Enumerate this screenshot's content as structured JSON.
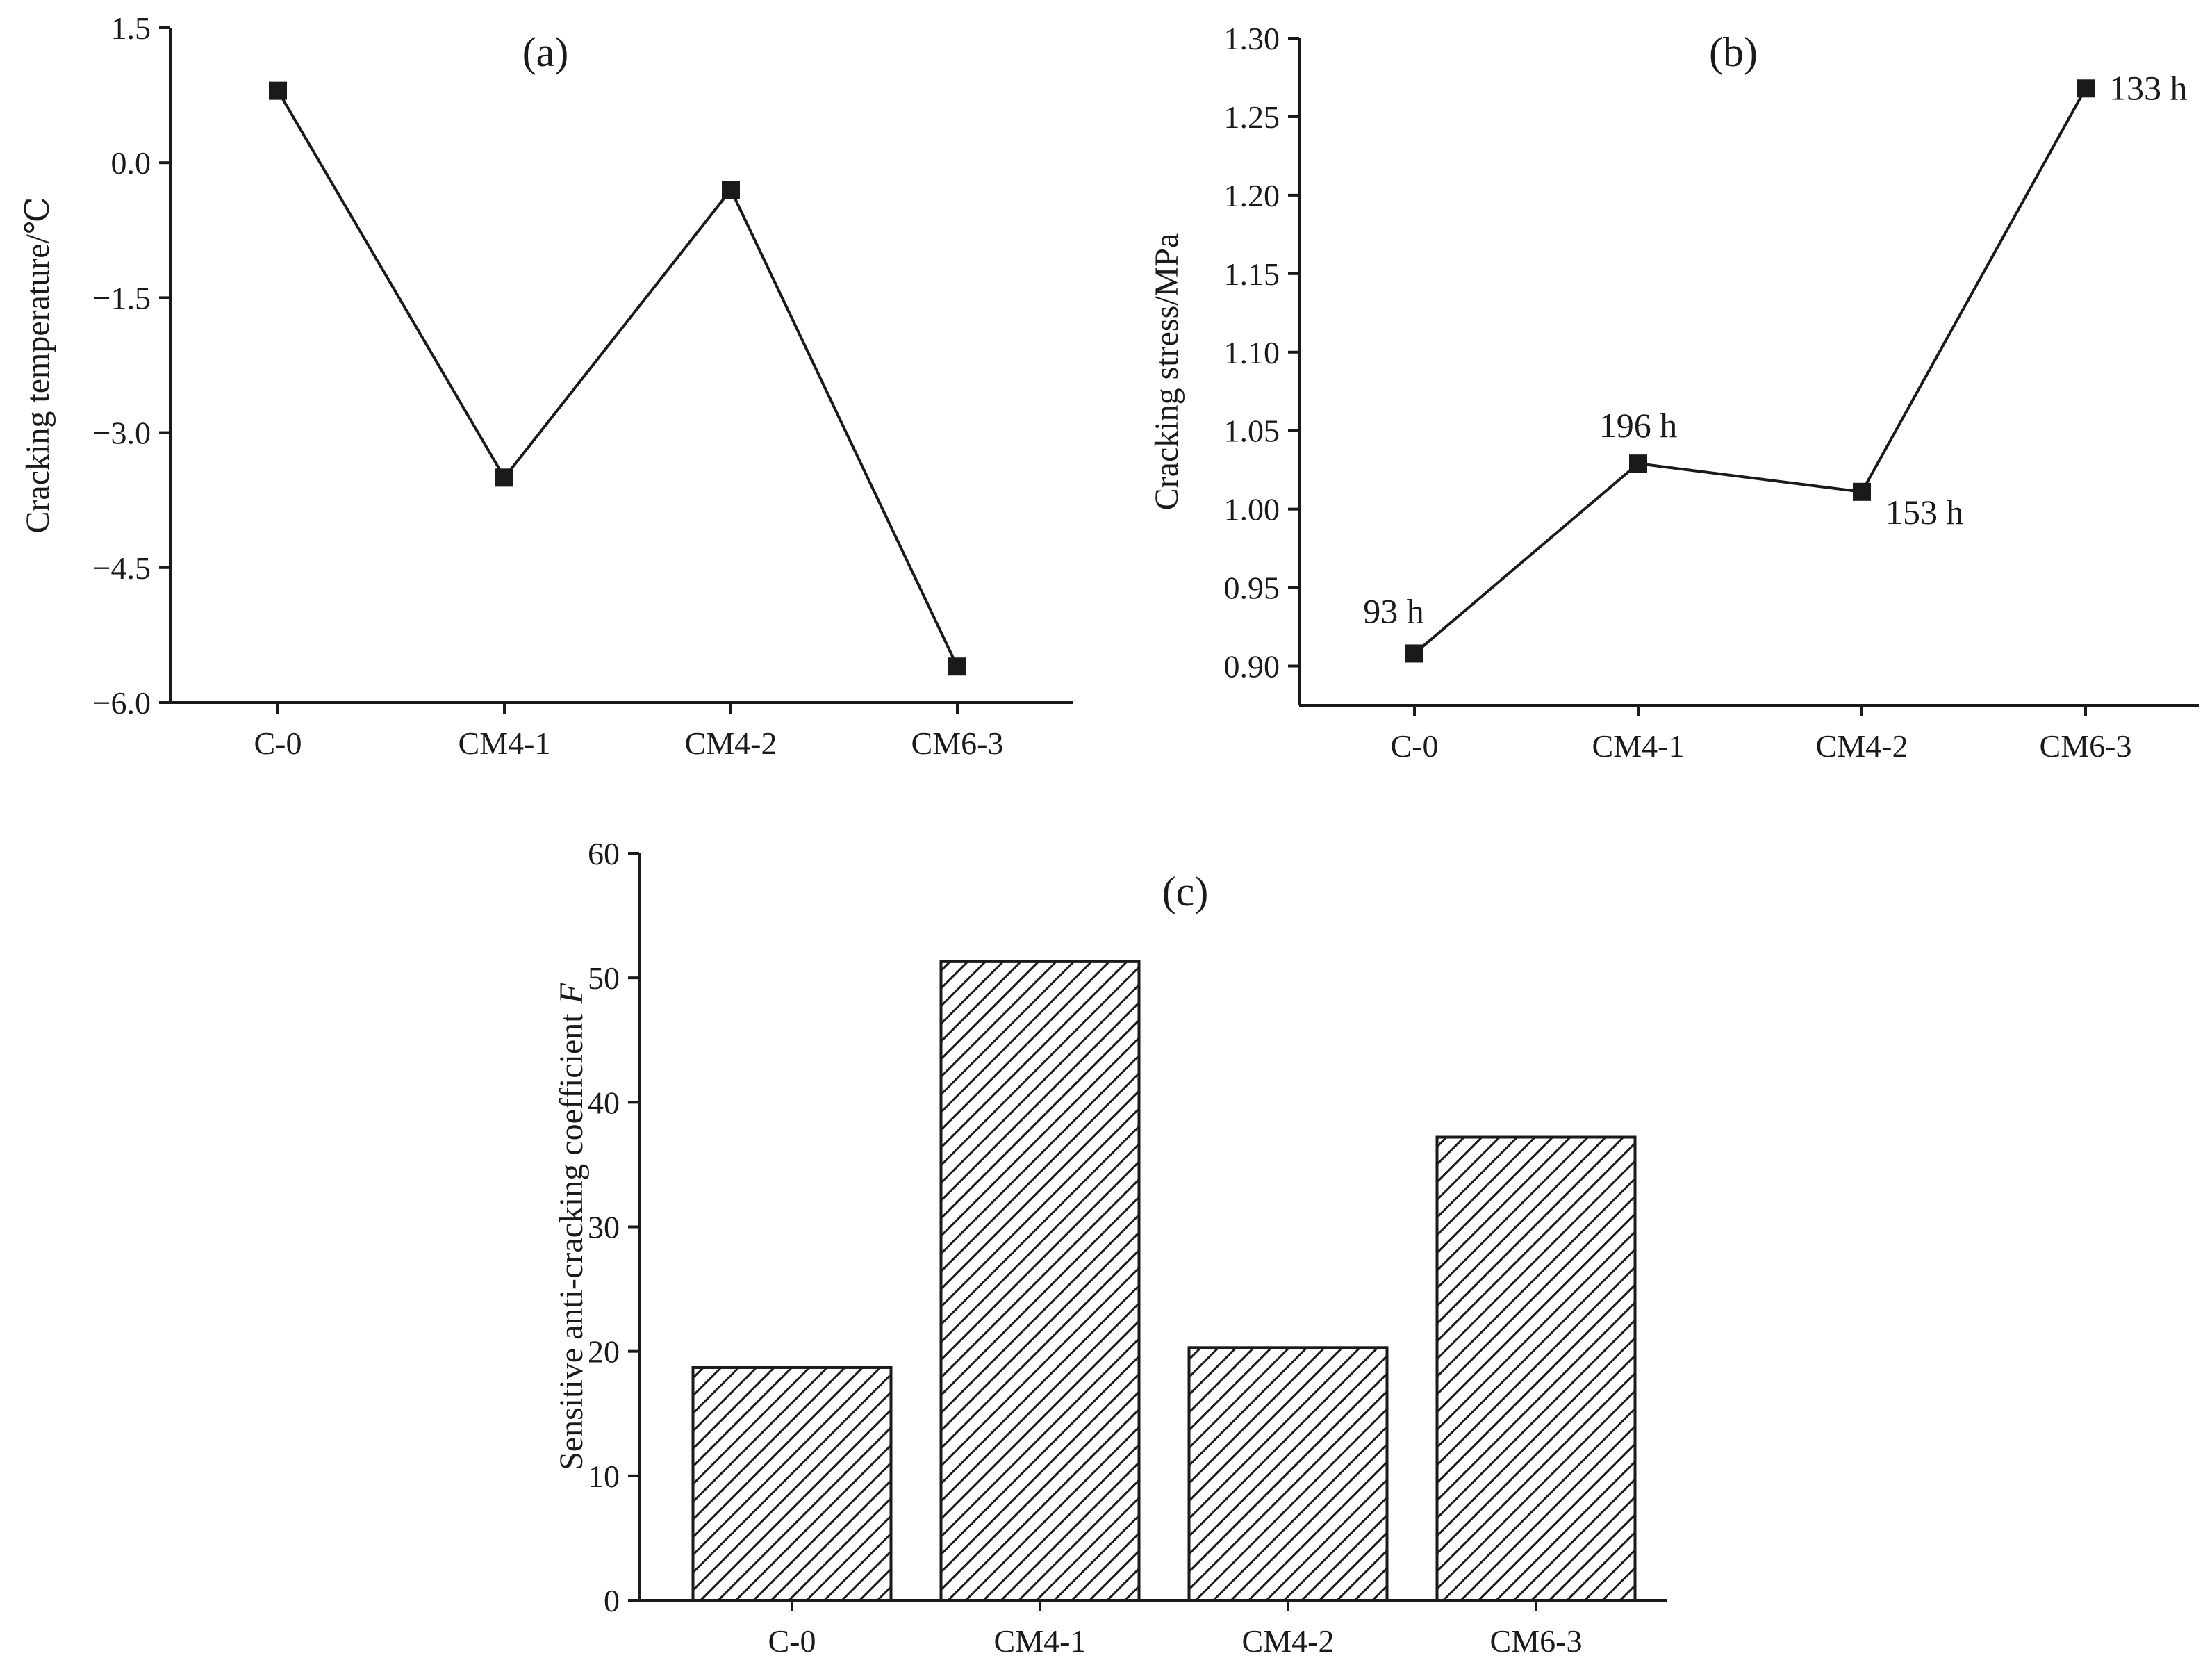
{
  "chart_data": [
    {
      "panel": "(a)",
      "type": "line",
      "categories": [
        "C-0",
        "CM4-1",
        "CM4-2",
        "CM6-3"
      ],
      "values": [
        0.8,
        -3.5,
        -0.3,
        -5.6
      ],
      "ylabel": "Cracking temperature/℃",
      "xlabel": "",
      "ylim": [
        -6.0,
        1.5
      ],
      "yticks": [
        "1.5",
        "0.0",
        "−1.5",
        "−3.0",
        "−4.5",
        "−6.0"
      ],
      "ytick_values": [
        1.5,
        0.0,
        -1.5,
        -3.0,
        -4.5,
        -6.0
      ],
      "marker": "square",
      "color": "#1a1a1a"
    },
    {
      "panel": "(b)",
      "type": "line",
      "categories": [
        "C-0",
        "CM4-1",
        "CM4-2",
        "CM6-3"
      ],
      "values": [
        0.908,
        1.029,
        1.011,
        1.268
      ],
      "point_labels": [
        "93 h",
        "196 h",
        "153 h",
        "133 h"
      ],
      "ylabel": "Cracking stress/MPa",
      "xlabel": "",
      "ylim": [
        0.875,
        1.3
      ],
      "yticks": [
        "1.30",
        "1.25",
        "1.20",
        "1.15",
        "1.10",
        "1.05",
        "1.00",
        "0.95",
        "0.90"
      ],
      "ytick_values": [
        1.3,
        1.25,
        1.2,
        1.15,
        1.1,
        1.05,
        1.0,
        0.95,
        0.9
      ],
      "marker": "square",
      "color": "#1a1a1a"
    },
    {
      "panel": "(c)",
      "type": "bar",
      "categories": [
        "C-0",
        "CM4-1",
        "CM4-2",
        "CM6-3"
      ],
      "values": [
        18.7,
        51.3,
        20.3,
        37.2
      ],
      "ylabel": "Sensitive anti-cracking coefficient",
      "ylabel_var": "F",
      "xlabel": "",
      "ylim": [
        0,
        60
      ],
      "yticks": [
        "60",
        "50",
        "40",
        "30",
        "20",
        "10",
        "0"
      ],
      "ytick_values": [
        60,
        50,
        40,
        30,
        20,
        10,
        0
      ],
      "pattern": "diagonal-hatch",
      "color": "#1a1a1a"
    }
  ]
}
